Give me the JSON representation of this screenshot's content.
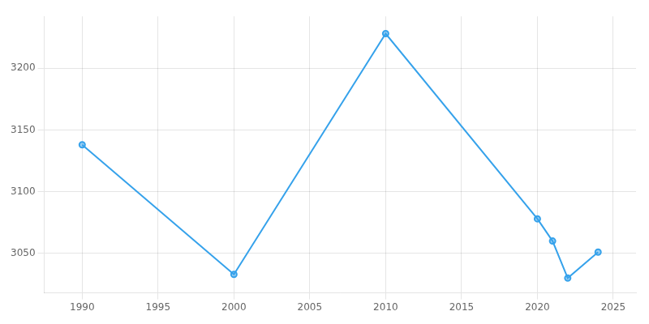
{
  "chart_data": {
    "type": "line",
    "x": [
      1990,
      2000,
      2010,
      2020,
      2021,
      2022,
      2024
    ],
    "values": [
      3138,
      3033,
      3228,
      3078,
      3060,
      3030,
      3051
    ],
    "xlim": [
      1987.5,
      2026.5
    ],
    "xticks": [
      1990,
      1995,
      2000,
      2005,
      2010,
      2015,
      2020,
      2025
    ],
    "ylim": [
      3018,
      3242
    ],
    "yticks": [
      3050,
      3100,
      3150,
      3200
    ],
    "grid": true,
    "marker": "circle"
  }
}
